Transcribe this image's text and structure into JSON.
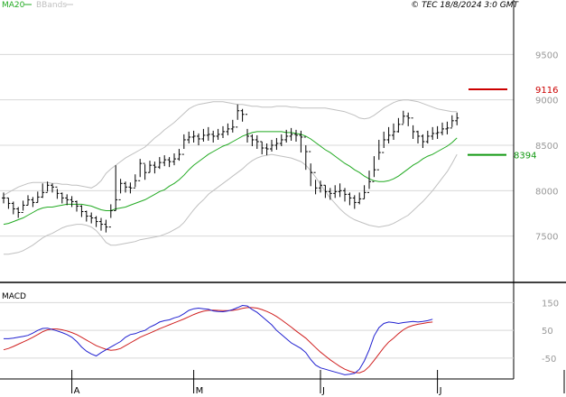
{
  "copyright": "© TEC 18/8/2024 3:0 GMT",
  "legend": {
    "ma_label": "MA20",
    "bb_label": "BBands"
  },
  "macd_title": "MACD",
  "colors": {
    "candles": "#000000",
    "ma": "#22aa22",
    "bbands": "#c0c0c0",
    "macd_line": "#2020d0",
    "signal_line": "#d02020",
    "resistance": "#cc0000",
    "support": "#119911",
    "grid": "#d8d8d8"
  },
  "chart_data": [
    {
      "type": "line",
      "title": "",
      "y_ticks": [
        "9500",
        "9000",
        "8500",
        "8000",
        "7500"
      ],
      "ylim": [
        7000,
        10000
      ],
      "x_labels": [
        "A",
        "M",
        "J",
        "J",
        "A"
      ],
      "x_label_bar_index": [
        14,
        39,
        65,
        89,
        115
      ],
      "reference_lines": [
        {
          "name": "resistance",
          "value": 9116,
          "label": "9116"
        },
        {
          "name": "support",
          "value": 8394,
          "label": "8394"
        }
      ],
      "close": [
        7920,
        7860,
        7800,
        7760,
        7840,
        7900,
        7870,
        7930,
        7980,
        8060,
        8040,
        7970,
        7920,
        7900,
        7880,
        7830,
        7770,
        7720,
        7700,
        7660,
        7630,
        7600,
        7780,
        7900,
        8080,
        8040,
        8030,
        8110,
        8300,
        8200,
        8280,
        8260,
        8310,
        8340,
        8320,
        8350,
        8400,
        8560,
        8590,
        8600,
        8570,
        8610,
        8620,
        8600,
        8620,
        8650,
        8680,
        8700,
        8880,
        8840,
        8600,
        8560,
        8540,
        8470,
        8460,
        8500,
        8520,
        8560,
        8600,
        8620,
        8610,
        8590,
        8430,
        8200,
        8030,
        8060,
        7990,
        7970,
        7990,
        8000,
        7960,
        7920,
        7870,
        7910,
        7980,
        8100,
        8230,
        8420,
        8560,
        8610,
        8650,
        8730,
        8820,
        8800,
        8650,
        8600,
        8540,
        8600,
        8630,
        8640,
        8680,
        8690,
        8770,
        8800
      ],
      "high": [
        7980,
        7920,
        7880,
        7820,
        7890,
        7950,
        7930,
        7990,
        8080,
        8100,
        8080,
        8020,
        7980,
        7960,
        7940,
        7890,
        7840,
        7780,
        7760,
        7720,
        7700,
        7680,
        7850,
        8280,
        8130,
        8100,
        8090,
        8180,
        8350,
        8290,
        8330,
        8320,
        8370,
        8390,
        8370,
        8410,
        8460,
        8620,
        8650,
        8660,
        8630,
        8680,
        8700,
        8660,
        8680,
        8710,
        8740,
        8780,
        8950,
        8900,
        8680,
        8620,
        8610,
        8540,
        8520,
        8560,
        8580,
        8620,
        8670,
        8690,
        8670,
        8660,
        8500,
        8300,
        8120,
        8110,
        8060,
        8030,
        8060,
        8080,
        8030,
        7980,
        7950,
        7980,
        8060,
        8220,
        8380,
        8560,
        8650,
        8700,
        8740,
        8800,
        8880,
        8860,
        8720,
        8660,
        8620,
        8660,
        8700,
        8710,
        8750,
        8760,
        8830,
        8860
      ],
      "low": [
        7860,
        7800,
        7740,
        7700,
        7780,
        7840,
        7820,
        7870,
        7920,
        7990,
        7980,
        7910,
        7860,
        7840,
        7820,
        7770,
        7710,
        7660,
        7640,
        7600,
        7560,
        7540,
        7700,
        7780,
        7970,
        7980,
        7970,
        8040,
        8150,
        8120,
        8200,
        8190,
        8240,
        8270,
        8260,
        8280,
        8330,
        8460,
        8520,
        8530,
        8500,
        8540,
        8550,
        8530,
        8560,
        8580,
        8610,
        8640,
        8780,
        8760,
        8530,
        8490,
        8460,
        8400,
        8390,
        8430,
        8450,
        8490,
        8530,
        8550,
        8540,
        8420,
        8230,
        8050,
        7960,
        7980,
        7920,
        7900,
        7920,
        7930,
        7880,
        7840,
        7800,
        7850,
        7910,
        8020,
        8150,
        8340,
        8470,
        8520,
        8560,
        8640,
        8740,
        8710,
        8570,
        8520,
        8470,
        8520,
        8560,
        8570,
        8610,
        8620,
        8700,
        8720
      ],
      "ma20": [
        7630,
        7640,
        7660,
        7680,
        7700,
        7730,
        7760,
        7790,
        7810,
        7820,
        7820,
        7830,
        7840,
        7850,
        7850,
        7850,
        7850,
        7840,
        7830,
        7810,
        7790,
        7780,
        7780,
        7800,
        7810,
        7820,
        7840,
        7860,
        7880,
        7900,
        7930,
        7960,
        7990,
        8010,
        8050,
        8080,
        8120,
        8170,
        8230,
        8280,
        8320,
        8360,
        8400,
        8430,
        8460,
        8490,
        8510,
        8540,
        8570,
        8600,
        8620,
        8640,
        8650,
        8650,
        8650,
        8650,
        8650,
        8650,
        8640,
        8640,
        8630,
        8620,
        8600,
        8570,
        8530,
        8490,
        8450,
        8420,
        8380,
        8340,
        8300,
        8270,
        8230,
        8200,
        8160,
        8130,
        8110,
        8100,
        8100,
        8110,
        8130,
        8160,
        8200,
        8240,
        8280,
        8310,
        8350,
        8380,
        8400,
        8430,
        8460,
        8490,
        8530,
        8580
      ],
      "bb_upper": [
        7950,
        7980,
        8010,
        8040,
        8060,
        8080,
        8090,
        8090,
        8090,
        8090,
        8080,
        8080,
        8070,
        8070,
        8060,
        8060,
        8050,
        8040,
        8030,
        8060,
        8110,
        8190,
        8240,
        8280,
        8320,
        8360,
        8390,
        8420,
        8450,
        8480,
        8530,
        8580,
        8620,
        8670,
        8710,
        8750,
        8800,
        8850,
        8900,
        8930,
        8950,
        8960,
        8970,
        8980,
        8980,
        8980,
        8970,
        8960,
        8950,
        8950,
        8940,
        8930,
        8930,
        8920,
        8920,
        8920,
        8930,
        8930,
        8930,
        8920,
        8920,
        8910,
        8910,
        8910,
        8910,
        8910,
        8910,
        8900,
        8890,
        8880,
        8870,
        8850,
        8830,
        8800,
        8790,
        8800,
        8830,
        8870,
        8910,
        8940,
        8970,
        8990,
        9000,
        9000,
        8990,
        8980,
        8960,
        8940,
        8920,
        8900,
        8890,
        8880,
        8870,
        8870
      ],
      "bb_lower": [
        7300,
        7300,
        7310,
        7320,
        7340,
        7370,
        7400,
        7440,
        7480,
        7510,
        7530,
        7560,
        7590,
        7610,
        7620,
        7630,
        7630,
        7620,
        7600,
        7560,
        7500,
        7430,
        7400,
        7400,
        7410,
        7420,
        7430,
        7440,
        7460,
        7470,
        7480,
        7490,
        7500,
        7520,
        7540,
        7570,
        7600,
        7650,
        7720,
        7790,
        7850,
        7900,
        7960,
        8000,
        8040,
        8080,
        8120,
        8160,
        8200,
        8240,
        8290,
        8330,
        8360,
        8380,
        8390,
        8400,
        8390,
        8380,
        8370,
        8360,
        8340,
        8320,
        8280,
        8220,
        8150,
        8070,
        7990,
        7920,
        7860,
        7800,
        7750,
        7710,
        7680,
        7660,
        7640,
        7620,
        7610,
        7600,
        7610,
        7620,
        7640,
        7670,
        7700,
        7730,
        7780,
        7830,
        7880,
        7940,
        8000,
        8070,
        8140,
        8210,
        8300,
        8400
      ]
    },
    {
      "type": "line",
      "title": "MACD",
      "y_ticks": [
        "150",
        "50",
        "-50"
      ],
      "ylim": [
        -125,
        200
      ],
      "series": [
        {
          "name": "MACD",
          "values": [
            20,
            20,
            22,
            25,
            28,
            32,
            40,
            50,
            57,
            58,
            53,
            48,
            42,
            35,
            25,
            10,
            -10,
            -25,
            -35,
            -42,
            -30,
            -20,
            -10,
            0,
            10,
            25,
            35,
            38,
            45,
            50,
            62,
            70,
            80,
            85,
            88,
            95,
            100,
            110,
            122,
            128,
            130,
            128,
            126,
            120,
            118,
            117,
            120,
            125,
            132,
            140,
            138,
            125,
            115,
            100,
            85,
            70,
            50,
            35,
            20,
            5,
            -5,
            -15,
            -30,
            -55,
            -75,
            -85,
            -90,
            -95,
            -100,
            -105,
            -110,
            -108,
            -105,
            -90,
            -60,
            -20,
            30,
            60,
            75,
            80,
            78,
            75,
            78,
            80,
            82,
            80,
            82,
            85,
            90
          ]
        },
        {
          "name": "Signal",
          "values": [
            -20,
            -15,
            -8,
            0,
            8,
            16,
            25,
            35,
            45,
            52,
            55,
            55,
            52,
            48,
            42,
            35,
            25,
            15,
            5,
            -5,
            -12,
            -18,
            -22,
            -20,
            -15,
            -5,
            5,
            15,
            25,
            33,
            40,
            48,
            56,
            63,
            70,
            77,
            84,
            91,
            99,
            107,
            114,
            119,
            122,
            123,
            122,
            121,
            121,
            122,
            125,
            129,
            132,
            132,
            130,
            125,
            118,
            110,
            100,
            88,
            75,
            62,
            48,
            35,
            22,
            5,
            -12,
            -28,
            -42,
            -56,
            -68,
            -80,
            -90,
            -97,
            -102,
            -103,
            -96,
            -80,
            -58,
            -35,
            -12,
            8,
            22,
            38,
            52,
            62,
            68,
            72,
            75,
            78,
            80
          ]
        }
      ]
    }
  ]
}
